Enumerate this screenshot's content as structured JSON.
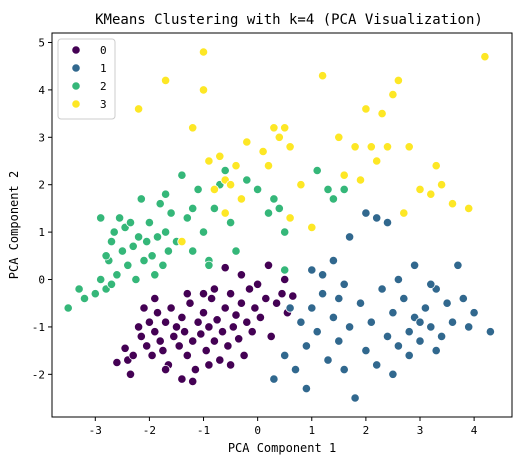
{
  "chart_data": {
    "type": "scatter",
    "title": "KMeans Clustering with k=4 (PCA Visualization)",
    "xlabel": "PCA Component 1",
    "ylabel": "PCA Component 2",
    "xlim": [
      -3.8,
      4.7
    ],
    "ylim": [
      -2.9,
      5.2
    ],
    "xticks": [
      -3,
      -2,
      -1,
      0,
      1,
      2,
      3,
      4
    ],
    "yticks": [
      -2,
      -1,
      0,
      1,
      2,
      3,
      4,
      5
    ],
    "grid": false,
    "legend_position": "top-left",
    "series": [
      {
        "name": "0",
        "color": "#440154",
        "points": [
          [
            -2.6,
            -1.75
          ],
          [
            -2.45,
            -1.45
          ],
          [
            -2.4,
            -1.7
          ],
          [
            -2.35,
            -2.0
          ],
          [
            -2.2,
            -1.0
          ],
          [
            -2.15,
            -1.2
          ],
          [
            -2.05,
            -1.4
          ],
          [
            -2.0,
            -0.9
          ],
          [
            -1.95,
            -1.6
          ],
          [
            -1.9,
            -1.1
          ],
          [
            -1.85,
            -0.7
          ],
          [
            -1.8,
            -1.3
          ],
          [
            -1.75,
            -1.5
          ],
          [
            -1.7,
            -0.9
          ],
          [
            -1.65,
            -1.8
          ],
          [
            -1.6,
            -0.6
          ],
          [
            -1.55,
            -1.2
          ],
          [
            -1.5,
            -1.0
          ],
          [
            -1.45,
            -1.4
          ],
          [
            -1.4,
            -0.8
          ],
          [
            -1.35,
            -1.1
          ],
          [
            -1.3,
            -1.6
          ],
          [
            -1.25,
            -0.5
          ],
          [
            -1.2,
            -1.3
          ],
          [
            -1.15,
            -1.9
          ],
          [
            -1.1,
            -0.9
          ],
          [
            -1.05,
            -1.15
          ],
          [
            -1.0,
            -0.7
          ],
          [
            -0.95,
            -1.5
          ],
          [
            -0.9,
            -1.0
          ],
          [
            -0.85,
            -0.4
          ],
          [
            -0.8,
            -1.3
          ],
          [
            -0.75,
            -0.85
          ],
          [
            -0.7,
            -1.7
          ],
          [
            -0.65,
            -1.1
          ],
          [
            -0.6,
            -0.6
          ],
          [
            -0.55,
            -1.4
          ],
          [
            -0.5,
            -0.3
          ],
          [
            -0.45,
            -1.0
          ],
          [
            -0.4,
            -0.75
          ],
          [
            -0.35,
            -1.25
          ],
          [
            -0.3,
            -0.5
          ],
          [
            -0.25,
            -1.6
          ],
          [
            -0.2,
            -0.9
          ],
          [
            -0.15,
            -0.2
          ],
          [
            -0.1,
            -1.1
          ],
          [
            -0.05,
            -0.6
          ],
          [
            0.05,
            -0.8
          ],
          [
            0.15,
            -0.4
          ],
          [
            0.25,
            -1.2
          ],
          [
            0.35,
            -0.5
          ],
          [
            0.45,
            -0.3
          ],
          [
            0.55,
            -0.7
          ],
          [
            0.65,
            -0.35
          ],
          [
            -1.2,
            -2.15
          ],
          [
            -1.3,
            -0.3
          ],
          [
            -1.0,
            -0.3
          ],
          [
            -0.9,
            -1.8
          ],
          [
            -0.6,
            0.25
          ],
          [
            -0.5,
            -1.8
          ],
          [
            -2.3,
            -1.6
          ],
          [
            -2.1,
            -0.6
          ],
          [
            -1.9,
            -0.4
          ],
          [
            -1.7,
            -1.9
          ],
          [
            -0.3,
            0.1
          ],
          [
            0.0,
            -0.1
          ],
          [
            0.2,
            0.3
          ],
          [
            0.5,
            0.0
          ],
          [
            -1.4,
            -2.1
          ],
          [
            -0.8,
            -0.2
          ]
        ]
      },
      {
        "name": "1",
        "color": "#31688e",
        "points": [
          [
            0.3,
            -2.1
          ],
          [
            0.5,
            -1.6
          ],
          [
            0.7,
            -1.9
          ],
          [
            0.8,
            -0.9
          ],
          [
            0.9,
            -1.4
          ],
          [
            1.0,
            -0.6
          ],
          [
            1.1,
            -1.1
          ],
          [
            1.2,
            -0.3
          ],
          [
            1.3,
            -1.7
          ],
          [
            1.4,
            -0.8
          ],
          [
            1.5,
            -1.3
          ],
          [
            1.6,
            -0.1
          ],
          [
            1.7,
            -1.0
          ],
          [
            1.8,
            -2.5
          ],
          [
            1.9,
            -0.5
          ],
          [
            2.0,
            -1.5
          ],
          [
            2.1,
            -0.9
          ],
          [
            2.2,
            -1.8
          ],
          [
            2.3,
            -0.2
          ],
          [
            2.4,
            -1.2
          ],
          [
            2.5,
            -0.7
          ],
          [
            2.6,
            -1.4
          ],
          [
            2.7,
            -0.4
          ],
          [
            2.8,
            -1.1
          ],
          [
            2.9,
            -0.8
          ],
          [
            3.0,
            -1.3
          ],
          [
            3.1,
            -0.6
          ],
          [
            3.2,
            -1.0
          ],
          [
            3.3,
            -0.2
          ],
          [
            3.4,
            -1.2
          ],
          [
            3.5,
            -0.5
          ],
          [
            3.6,
            -0.9
          ],
          [
            3.7,
            0.3
          ],
          [
            3.8,
            -0.4
          ],
          [
            3.9,
            -1.0
          ],
          [
            4.0,
            -0.7
          ],
          [
            4.3,
            -1.1
          ],
          [
            2.0,
            1.4
          ],
          [
            2.2,
            1.3
          ],
          [
            2.4,
            1.2
          ],
          [
            1.7,
            0.9
          ],
          [
            1.4,
            0.4
          ],
          [
            1.2,
            0.1
          ],
          [
            2.6,
            0.0
          ],
          [
            2.9,
            0.3
          ],
          [
            3.2,
            -0.1
          ],
          [
            1.0,
            0.2
          ],
          [
            0.6,
            -0.6
          ],
          [
            1.6,
            -1.9
          ],
          [
            2.8,
            -1.6
          ],
          [
            3.0,
            -0.9
          ],
          [
            3.3,
            -1.5
          ],
          [
            1.5,
            -0.4
          ],
          [
            2.5,
            -2.0
          ],
          [
            0.9,
            -2.3
          ]
        ]
      },
      {
        "name": "2",
        "color": "#35b779",
        "points": [
          [
            -3.5,
            -0.6
          ],
          [
            -3.3,
            -0.2
          ],
          [
            -3.2,
            -0.4
          ],
          [
            -3.0,
            -0.3
          ],
          [
            -2.9,
            0.0
          ],
          [
            -2.8,
            -0.2
          ],
          [
            -2.75,
            0.4
          ],
          [
            -2.7,
            0.8
          ],
          [
            -2.65,
            1.0
          ],
          [
            -2.6,
            0.1
          ],
          [
            -2.55,
            1.3
          ],
          [
            -2.5,
            0.6
          ],
          [
            -2.45,
            1.1
          ],
          [
            -2.4,
            0.3
          ],
          [
            -2.35,
            1.2
          ],
          [
            -2.3,
            0.7
          ],
          [
            -2.25,
            0.0
          ],
          [
            -2.2,
            0.9
          ],
          [
            -2.15,
            1.7
          ],
          [
            -2.1,
            0.4
          ],
          [
            -2.05,
            0.8
          ],
          [
            -2.0,
            1.2
          ],
          [
            -1.95,
            0.5
          ],
          [
            -1.9,
            0.1
          ],
          [
            -1.85,
            0.9
          ],
          [
            -1.8,
            1.6
          ],
          [
            -1.75,
            0.3
          ],
          [
            -1.7,
            1.0
          ],
          [
            -1.65,
            0.6
          ],
          [
            -1.6,
            1.4
          ],
          [
            -1.5,
            0.8
          ],
          [
            -1.4,
            2.2
          ],
          [
            -1.3,
            1.3
          ],
          [
            -1.2,
            0.6
          ],
          [
            -1.1,
            1.9
          ],
          [
            -1.0,
            1.0
          ],
          [
            -0.9,
            0.4
          ],
          [
            -0.8,
            1.5
          ],
          [
            -0.7,
            2.0
          ],
          [
            -0.6,
            2.3
          ],
          [
            -0.5,
            1.2
          ],
          [
            -0.4,
            0.6
          ],
          [
            0.0,
            1.9
          ],
          [
            0.2,
            1.4
          ],
          [
            0.3,
            1.7
          ],
          [
            0.4,
            1.5
          ],
          [
            0.5,
            1.0
          ],
          [
            0.5,
            0.2
          ],
          [
            1.1,
            2.3
          ],
          [
            1.3,
            1.9
          ],
          [
            1.4,
            1.7
          ],
          [
            1.6,
            1.9
          ],
          [
            -2.7,
            -0.1
          ],
          [
            -2.9,
            1.3
          ],
          [
            -1.2,
            1.5
          ],
          [
            -0.9,
            0.3
          ],
          [
            -2.8,
            0.5
          ],
          [
            -1.7,
            1.8
          ],
          [
            -0.2,
            2.1
          ]
        ]
      },
      {
        "name": "3",
        "color": "#fde725",
        "points": [
          [
            -2.2,
            3.6
          ],
          [
            -1.7,
            4.2
          ],
          [
            -1.2,
            3.2
          ],
          [
            -1.0,
            4.8
          ],
          [
            -1.0,
            4.0
          ],
          [
            -0.9,
            2.5
          ],
          [
            -0.8,
            1.9
          ],
          [
            -0.7,
            2.6
          ],
          [
            -0.6,
            2.1
          ],
          [
            -0.5,
            2.0
          ],
          [
            -0.4,
            2.4
          ],
          [
            -0.3,
            1.7
          ],
          [
            -0.2,
            2.9
          ],
          [
            0.2,
            2.4
          ],
          [
            0.3,
            3.2
          ],
          [
            0.4,
            3.0
          ],
          [
            0.5,
            3.2
          ],
          [
            0.6,
            2.8
          ],
          [
            1.2,
            4.3
          ],
          [
            1.5,
            3.0
          ],
          [
            1.8,
            2.8
          ],
          [
            1.9,
            2.1
          ],
          [
            2.0,
            3.6
          ],
          [
            2.1,
            2.8
          ],
          [
            2.2,
            2.5
          ],
          [
            2.3,
            3.5
          ],
          [
            2.4,
            2.8
          ],
          [
            2.5,
            3.9
          ],
          [
            2.6,
            4.2
          ],
          [
            2.8,
            2.8
          ],
          [
            3.0,
            1.9
          ],
          [
            3.2,
            1.8
          ],
          [
            3.4,
            2.0
          ],
          [
            3.6,
            1.6
          ],
          [
            3.9,
            1.5
          ],
          [
            4.2,
            4.7
          ],
          [
            0.8,
            2.0
          ],
          [
            0.6,
            1.3
          ],
          [
            -1.4,
            0.8
          ],
          [
            -0.6,
            1.4
          ],
          [
            1.0,
            1.1
          ],
          [
            1.6,
            2.2
          ],
          [
            2.7,
            1.4
          ],
          [
            3.3,
            2.4
          ],
          [
            0.1,
            2.7
          ]
        ]
      }
    ]
  }
}
